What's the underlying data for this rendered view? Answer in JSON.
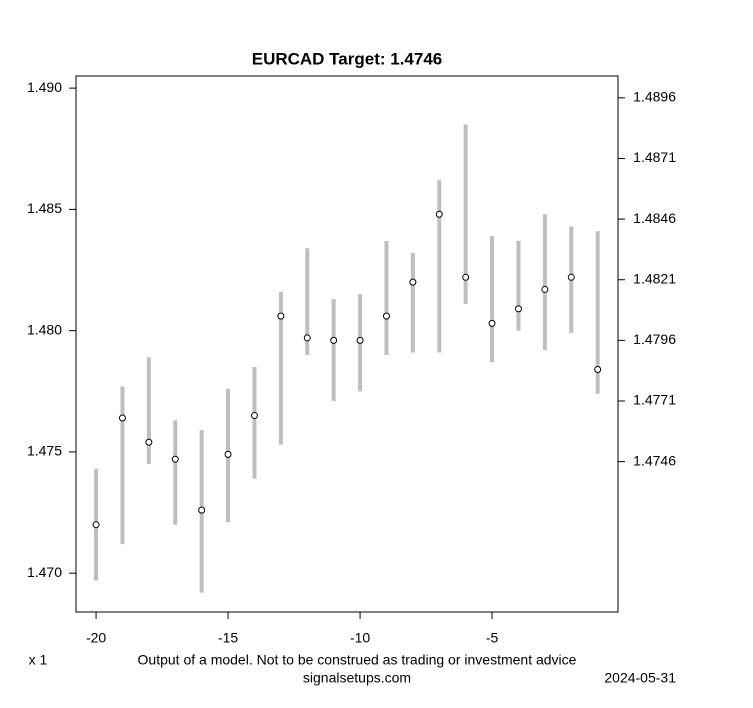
{
  "chart_data": {
    "type": "errorbar",
    "title": "EURCAD Target: 1.4746",
    "x": [
      -20,
      -19,
      -18,
      -17,
      -16,
      -15,
      -14,
      -13,
      -12,
      -11,
      -10,
      -9,
      -8,
      -7,
      -6,
      -5,
      -4,
      -3,
      -2,
      -1
    ],
    "series": [
      {
        "color": "#bebebe",
        "values": [
          1.472,
          1.4764,
          1.4754,
          1.4747,
          1.4726,
          1.4749,
          1.4765,
          1.4806,
          1.4797,
          1.4796,
          1.4796,
          1.4806,
          1.482,
          1.4848,
          1.4822,
          1.4803,
          1.4809,
          1.4817,
          1.4822,
          1.4784
        ],
        "low": [
          1.4697,
          1.4712,
          1.4745,
          1.472,
          1.4692,
          1.4721,
          1.4739,
          1.4753,
          1.479,
          1.4771,
          1.4775,
          1.479,
          1.4791,
          1.4791,
          1.4811,
          1.4787,
          1.48,
          1.4792,
          1.4799,
          1.4774
        ],
        "high": [
          1.4743,
          1.4777,
          1.4789,
          1.4763,
          1.4759,
          1.4776,
          1.4785,
          1.4816,
          1.4834,
          1.4813,
          1.4815,
          1.4837,
          1.4832,
          1.4862,
          1.4885,
          1.4839,
          1.4837,
          1.4848,
          1.4843,
          1.4841
        ]
      }
    ],
    "xlim": [
      -20.76,
      -0.23
    ],
    "xticks": [
      -20,
      -15,
      -10,
      -5
    ],
    "ylim": [
      1.4684,
      1.4905
    ],
    "yticks": [
      {
        "value": 1.47,
        "label": "1.470"
      },
      1.475,
      {
        "value": 1.48,
        "label": "1.480"
      },
      1.485,
      {
        "value": 1.49,
        "label": "1.490"
      }
    ],
    "y2lim": [
      1.4684,
      1.4905
    ],
    "y2ticks": [
      1.4746,
      1.4771,
      1.4796,
      1.4821,
      1.4846,
      1.4871,
      1.4896
    ],
    "x_note": "x 1",
    "disclaimer": "Output of a model. Not to be construed as trading or investment advice",
    "source": "signalsetups.com",
    "date": "2024-05-31"
  }
}
